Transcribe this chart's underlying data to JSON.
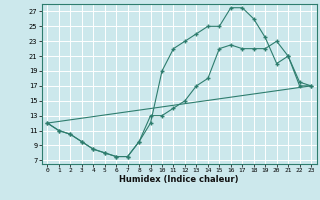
{
  "xlabel": "Humidex (Indice chaleur)",
  "bg_color": "#cce8ec",
  "grid_color": "#ffffff",
  "line_color": "#2e7d6e",
  "xlim": [
    -0.5,
    23.5
  ],
  "ylim": [
    6.5,
    28
  ],
  "xticks": [
    0,
    1,
    2,
    3,
    4,
    5,
    6,
    7,
    8,
    9,
    10,
    11,
    12,
    13,
    14,
    15,
    16,
    17,
    18,
    19,
    20,
    21,
    22,
    23
  ],
  "yticks": [
    7,
    9,
    11,
    13,
    15,
    17,
    19,
    21,
    23,
    25,
    27
  ],
  "line1_x": [
    0,
    1,
    2,
    3,
    4,
    5,
    6,
    7,
    8,
    9,
    10,
    11,
    12,
    13,
    14,
    15,
    16,
    17,
    18,
    19,
    20,
    21,
    22,
    23
  ],
  "line1_y": [
    12,
    11,
    10.5,
    9.5,
    8.5,
    8,
    7.5,
    7.5,
    9.5,
    12,
    19,
    22,
    23,
    24,
    25,
    25,
    27.5,
    27.5,
    26,
    23.5,
    20,
    21,
    17.5,
    17
  ],
  "line2_x": [
    0,
    1,
    2,
    3,
    4,
    5,
    6,
    7,
    8,
    9,
    10,
    11,
    12,
    13,
    14,
    15,
    16,
    17,
    18,
    19,
    20,
    21,
    22,
    23
  ],
  "line2_y": [
    12,
    11,
    10.5,
    9.5,
    8.5,
    8,
    7.5,
    7.5,
    9.5,
    13,
    13,
    14,
    15,
    17,
    18,
    22,
    22.5,
    22,
    22,
    22,
    23,
    21,
    17,
    17
  ],
  "line3_x": [
    0,
    23
  ],
  "line3_y": [
    12,
    17
  ]
}
